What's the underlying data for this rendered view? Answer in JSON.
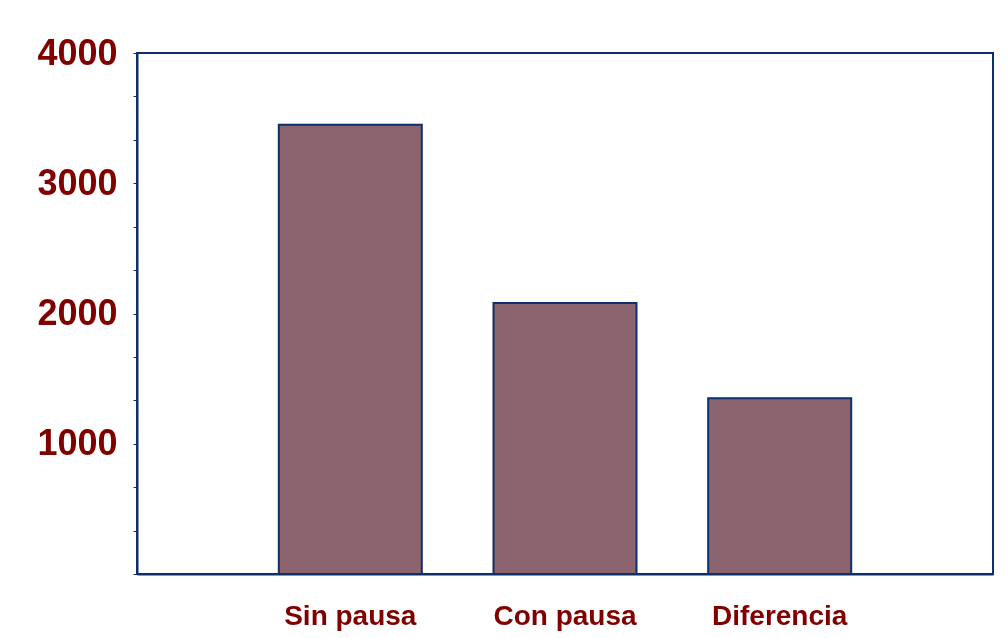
{
  "chart_data": {
    "type": "bar",
    "categories": [
      "Sin pausa",
      "Con pausa",
      "Diferencia"
    ],
    "values": [
      3450,
      2080,
      1350
    ],
    "color": "#8c6470",
    "ylim": [
      0,
      4000
    ],
    "yticks": [
      {
        "value": 0,
        "label": null
      },
      {
        "value": 333.33,
        "label": null
      },
      {
        "value": 666.67,
        "label": null
      },
      1000,
      {
        "value": 1333.33,
        "label": null
      },
      {
        "value": 1666.67,
        "label": null
      },
      2000,
      {
        "value": 2333.33,
        "label": null
      },
      {
        "value": 2666.67,
        "label": null
      },
      3000,
      {
        "value": 3333.33,
        "label": null
      },
      {
        "value": 3666.67,
        "label": null
      },
      4000
    ],
    "grid": false
  }
}
